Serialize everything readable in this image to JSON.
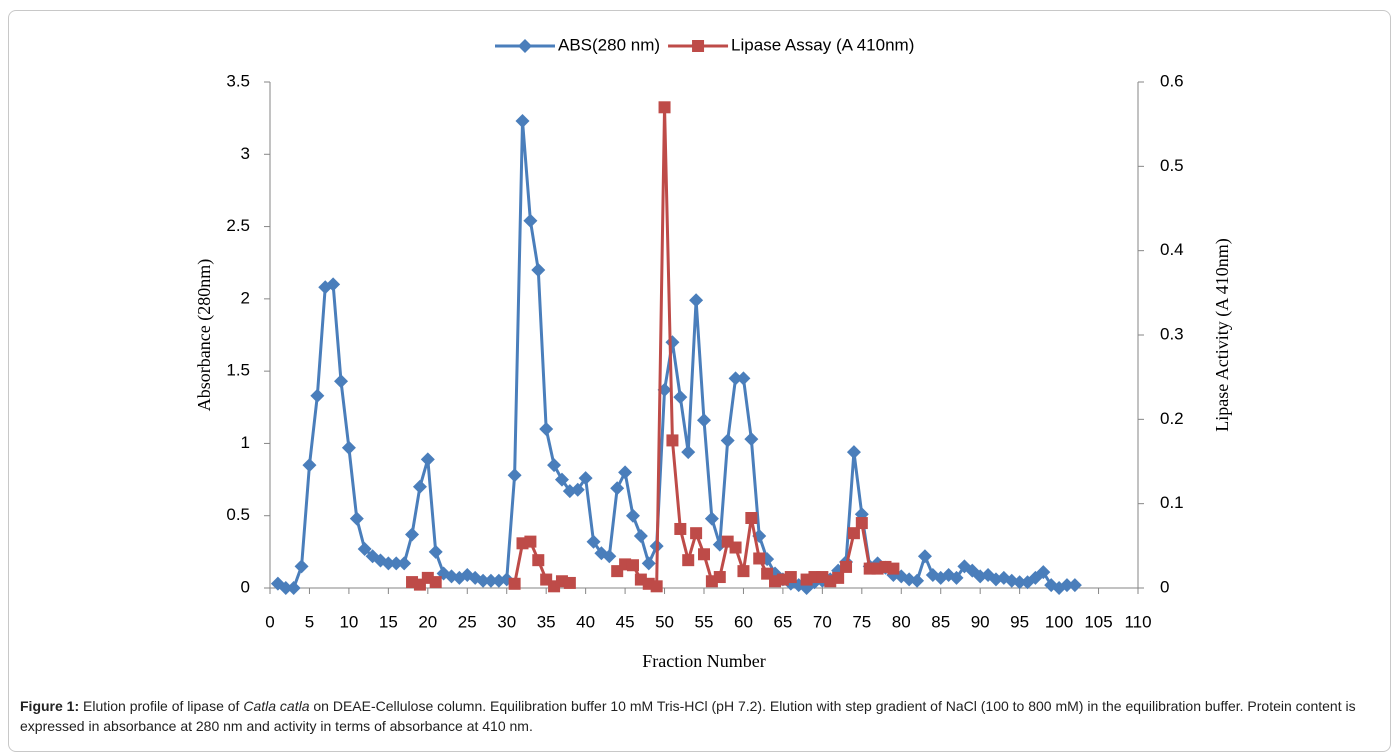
{
  "chart_data": {
    "type": "line",
    "legend": "top",
    "y_label": "Absorbance (280nm)",
    "y2_label": "Lipase Activity (A 410nm)",
    "x_label": "Fraction Number",
    "xlim": [
      0,
      110
    ],
    "xticks": [
      0,
      5,
      10,
      15,
      20,
      25,
      30,
      35,
      40,
      45,
      50,
      55,
      60,
      65,
      70,
      75,
      80,
      85,
      90,
      95,
      100,
      105,
      110
    ],
    "ylim": [
      0,
      3.5
    ],
    "yticks": [
      0,
      0.5,
      1,
      1.5,
      2,
      2.5,
      3,
      3.5
    ],
    "y2lim": [
      0,
      0.6
    ],
    "y2ticks": [
      0,
      0.1,
      0.2,
      0.3,
      0.4,
      0.5,
      0.6
    ],
    "x": [
      1,
      2,
      3,
      4,
      5,
      6,
      7,
      8,
      9,
      10,
      11,
      12,
      13,
      14,
      15,
      16,
      17,
      18,
      19,
      20,
      21,
      22,
      23,
      24,
      25,
      26,
      27,
      28,
      29,
      30,
      31,
      32,
      33,
      34,
      35,
      36,
      37,
      38,
      39,
      40,
      41,
      42,
      43,
      44,
      45,
      46,
      47,
      48,
      49,
      50,
      51,
      52,
      53,
      54,
      55,
      56,
      57,
      58,
      59,
      60,
      61,
      62,
      63,
      64,
      65,
      66,
      67,
      68,
      69,
      70,
      71,
      72,
      73,
      74,
      75,
      76,
      77,
      78,
      79,
      80,
      81,
      82,
      83,
      84,
      85,
      86,
      87,
      88,
      89,
      90,
      91,
      92,
      93,
      94,
      95,
      96,
      97,
      98,
      99,
      100,
      101,
      102
    ],
    "series": [
      {
        "name": "ABS(280 nm)",
        "color": "#4a7ebb",
        "marker": "diamond",
        "axis": "y",
        "values": [
          0.03,
          0.0,
          0.0,
          0.15,
          0.85,
          1.33,
          2.08,
          2.1,
          1.43,
          0.97,
          0.48,
          0.27,
          0.22,
          0.19,
          0.17,
          0.17,
          0.17,
          0.37,
          0.7,
          0.89,
          0.25,
          0.1,
          0.08,
          0.07,
          0.09,
          0.07,
          0.05,
          0.05,
          0.05,
          0.06,
          0.78,
          3.23,
          2.54,
          2.2,
          1.1,
          0.85,
          0.75,
          0.67,
          0.68,
          0.76,
          0.32,
          0.24,
          0.22,
          0.69,
          0.8,
          0.5,
          0.36,
          0.17,
          0.29,
          1.37,
          1.7,
          1.32,
          0.94,
          1.99,
          1.16,
          0.48,
          0.3,
          1.02,
          1.45,
          1.45,
          1.03,
          0.36,
          0.2,
          0.1,
          0.06,
          0.03,
          0.02,
          0.0,
          0.04,
          0.05,
          0.06,
          0.12,
          0.18,
          0.94,
          0.51,
          0.15,
          0.17,
          0.14,
          0.09,
          0.08,
          0.06,
          0.05,
          0.22,
          0.09,
          0.07,
          0.09,
          0.07,
          0.15,
          0.12,
          0.08,
          0.09,
          0.06,
          0.07,
          0.05,
          0.04,
          0.04,
          0.07,
          0.11,
          0.02,
          0.0,
          0.02,
          0.02
        ]
      },
      {
        "name": "Lipase Assay (A 410nm)",
        "color": "#be4b48",
        "marker": "square",
        "axis": "y2",
        "values": [
          null,
          null,
          null,
          null,
          null,
          null,
          null,
          null,
          null,
          null,
          null,
          null,
          null,
          null,
          null,
          null,
          null,
          0.007,
          0.004,
          0.012,
          0.007,
          null,
          null,
          null,
          null,
          null,
          null,
          null,
          null,
          null,
          0.005,
          0.053,
          0.055,
          0.033,
          0.01,
          0.002,
          0.008,
          0.006,
          null,
          null,
          null,
          null,
          null,
          0.02,
          0.028,
          0.027,
          0.01,
          0.005,
          0.002,
          0.57,
          0.175,
          0.07,
          0.033,
          0.065,
          0.04,
          0.008,
          0.013,
          0.055,
          0.048,
          0.02,
          0.083,
          0.035,
          0.017,
          0.008,
          0.01,
          0.013,
          null,
          0.01,
          0.013,
          0.013,
          0.008,
          0.012,
          0.025,
          0.065,
          0.077,
          0.023,
          0.023,
          0.025,
          0.023,
          null,
          null,
          null,
          null,
          null,
          null,
          null,
          null,
          null,
          null,
          null,
          null,
          null,
          null,
          null,
          null,
          null,
          null,
          null,
          null,
          null,
          null,
          null
        ]
      }
    ],
    "caption": {
      "label": "Figure 1:",
      "parts": [
        " Elution profile of lipase of ",
        "Catla catla",
        " on DEAE-Cellulose column. Equilibration buffer 10 mM Tris-HCl (pH 7.2). Elution with step gradient of NaCl (100 to 800 mM) in the equilibration buffer. Protein content is expressed in absorbance at 280 nm and activity in terms of absorbance at 410 nm."
      ]
    }
  }
}
